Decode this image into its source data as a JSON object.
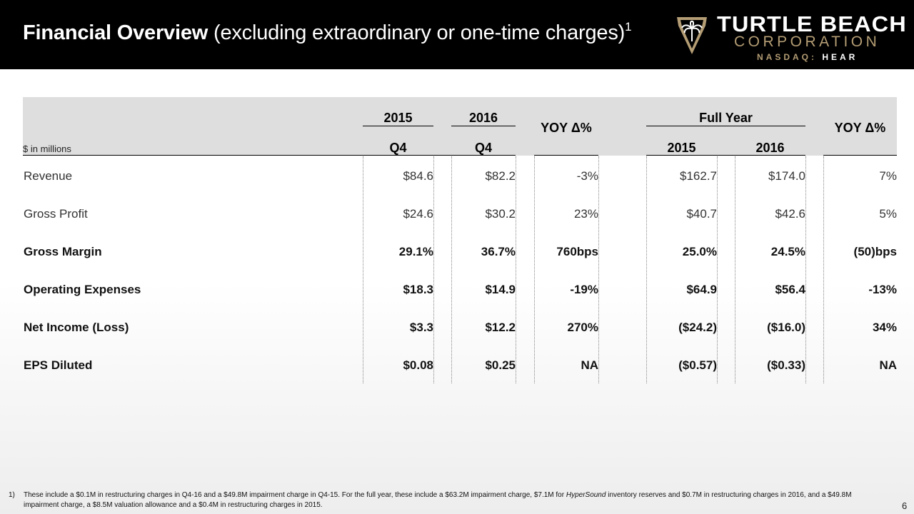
{
  "header": {
    "title_bold": "Financial Overview",
    "title_rest": "(excluding extraordinary or one-time charges)",
    "title_sup": "1"
  },
  "logo": {
    "word": "TURTLE BEACH",
    "corp": "CORPORATION",
    "ticker_label": "NASDAQ:",
    "ticker_symbol": "HEAR",
    "emblem": "palm-tree-shield-icon",
    "accent_color": "#b49d74"
  },
  "table": {
    "units": "$ in millions",
    "headers": {
      "q_2015_year": "2015",
      "q_2016_year": "2016",
      "q_2015_period": "Q4",
      "q_2016_period": "Q4",
      "yoy_q": "YOY Δ%",
      "full_year": "Full Year",
      "fy_2015": "2015",
      "fy_2016": "2016",
      "yoy_fy": "YOY Δ%"
    },
    "rows": [
      {
        "label": "Revenue",
        "q4_2015": "$84.6",
        "q4_2016": "$82.2",
        "yoy_q": "-3%",
        "fy_2015": "$162.7",
        "fy_2016": "$174.0",
        "yoy_fy": "7%"
      },
      {
        "label": "Gross Profit",
        "q4_2015": "$24.6",
        "q4_2016": "$30.2",
        "yoy_q": "23%",
        "fy_2015": "$40.7",
        "fy_2016": "$42.6",
        "yoy_fy": "5%"
      },
      {
        "label": "Gross Margin",
        "q4_2015": "29.1%",
        "q4_2016": "36.7%",
        "yoy_q": "760bps",
        "fy_2015": "25.0%",
        "fy_2016": "24.5%",
        "yoy_fy": "(50)bps"
      },
      {
        "label": "Operating Expenses",
        "q4_2015": "$18.3",
        "q4_2016": "$14.9",
        "yoy_q": "-19%",
        "fy_2015": "$64.9",
        "fy_2016": "$56.4",
        "yoy_fy": "-13%"
      },
      {
        "label": "Net Income (Loss)",
        "q4_2015": "$3.3",
        "q4_2016": "$12.2",
        "yoy_q": "270%",
        "fy_2015": "($24.2)",
        "fy_2016": "($16.0)",
        "yoy_fy": "34%"
      },
      {
        "label": "EPS Diluted",
        "q4_2015": "$0.08",
        "q4_2016": "$0.25",
        "yoy_q": "NA",
        "fy_2015": "($0.57)",
        "fy_2016": "($0.33)",
        "yoy_fy": "NA"
      }
    ]
  },
  "footnote": {
    "number": "1)",
    "text_a": "These include a $0.1M in restructuring charges in Q4-16 and a $49.8M impairment charge in Q4-15. For the full year, these include a $63.2M impairment charge, $7.1M for ",
    "text_italic": "HyperSound",
    "text_b": " inventory reserves and $0.7M in restructuring charges in 2016, and a $49.8M impairment charge, a $8.5M valuation allowance and a $0.4M in restructuring charges in 2015."
  },
  "page_number": "6"
}
